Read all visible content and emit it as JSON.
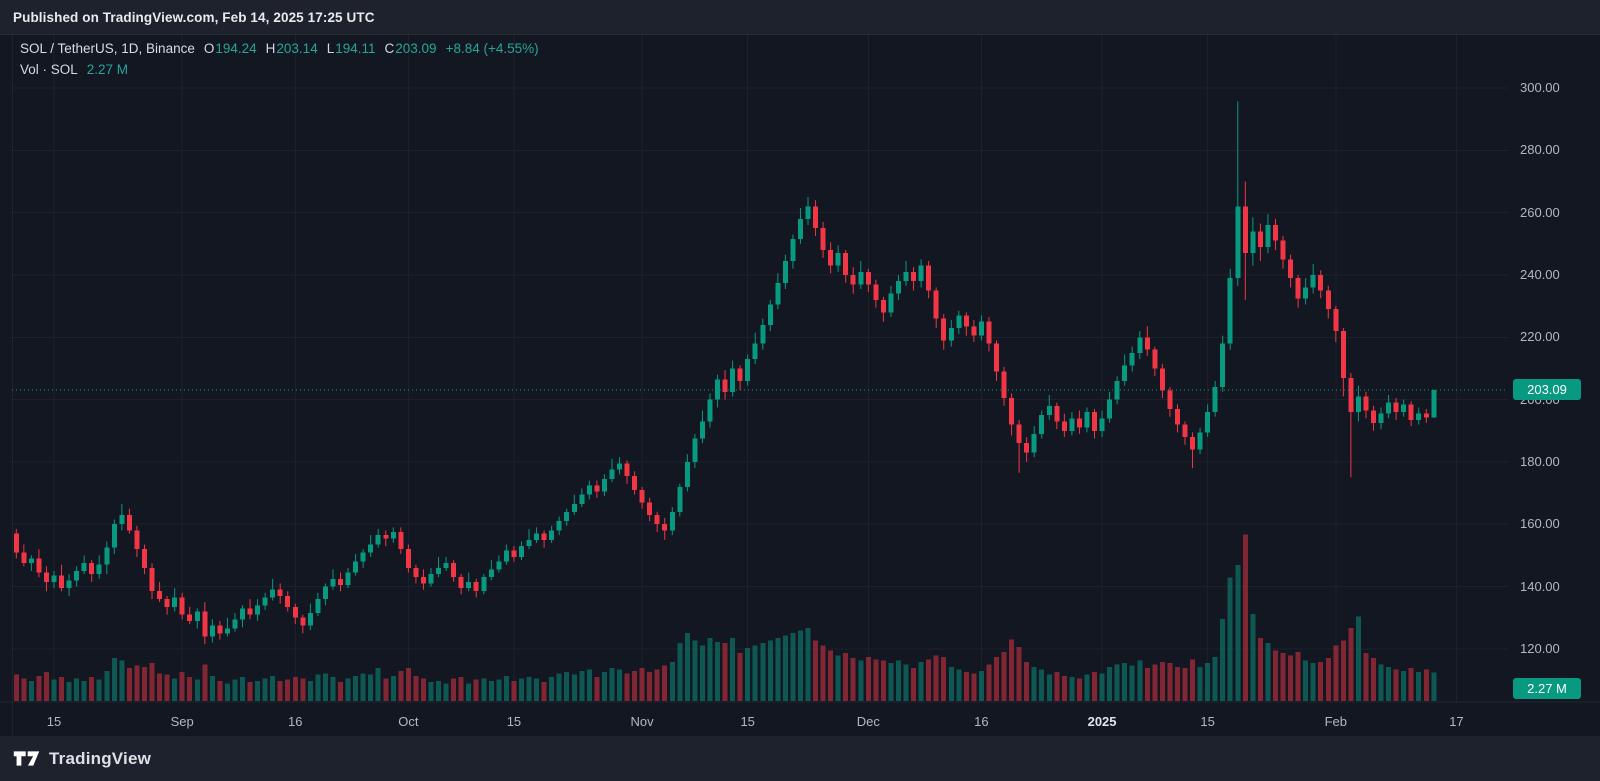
{
  "header": {
    "published_line": "Published on TradingView.com, Feb 14, 2025 17:25 UTC"
  },
  "legend": {
    "symbol_title": "SOL / TetherUS, 1D, Binance",
    "o_label": "O",
    "o_value": "194.24",
    "h_label": "H",
    "h_value": "203.14",
    "l_label": "L",
    "l_value": "194.11",
    "c_label": "C",
    "c_value": "203.09",
    "change": "+8.84 (+4.55%)",
    "volume_label": "Vol · SOL",
    "volume_value": "2.27 M"
  },
  "price_axis": {
    "labels": [
      "300.00",
      "280.00",
      "260.00",
      "240.00",
      "220.00",
      "200.00",
      "180.00",
      "160.00",
      "140.00",
      "120.00"
    ],
    "price_badge": "203.09",
    "volume_badge": "2.27 M"
  },
  "time_axis": {
    "ticks": [
      {
        "label": "15",
        "day": 5,
        "emph": false
      },
      {
        "label": "Sep",
        "day": 22,
        "emph": false
      },
      {
        "label": "16",
        "day": 37,
        "emph": false
      },
      {
        "label": "Oct",
        "day": 52,
        "emph": false
      },
      {
        "label": "15",
        "day": 66,
        "emph": false
      },
      {
        "label": "Nov",
        "day": 83,
        "emph": false
      },
      {
        "label": "15",
        "day": 97,
        "emph": false
      },
      {
        "label": "Dec",
        "day": 113,
        "emph": false
      },
      {
        "label": "16",
        "day": 128,
        "emph": false
      },
      {
        "label": "2025",
        "day": 144,
        "emph": true
      },
      {
        "label": "15",
        "day": 158,
        "emph": false
      },
      {
        "label": "Feb",
        "day": 175,
        "emph": false
      },
      {
        "label": "17",
        "day": 191,
        "emph": false
      }
    ]
  },
  "footer": {
    "brand": "TradingView"
  },
  "colors": {
    "up": "#089981",
    "down": "#F23645",
    "accent_teal": "#26a69a",
    "badge": "#089981",
    "bg_outer": "#1e222d",
    "bg_chart": "#131722",
    "grid": "#1c212c",
    "text_primary": "#d5d8dd",
    "text_axis": "#b2b7c0"
  },
  "chart_data": {
    "type": "candlestick_with_volume",
    "title": "SOL / TetherUS, 1D, Binance",
    "symbol": "SOL/USDT",
    "exchange": "Binance",
    "interval": "1D",
    "start_date": "2024-08-10",
    "end_date": "2025-02-14",
    "note": "candles are consecutive daily bars [open, high, low, close, volume_millions]; values estimated from gridlines except final bar which matches the legend OHLC",
    "current_price": 203.09,
    "current_volume_m": 2.27,
    "price_ticks": [
      300,
      280,
      260,
      240,
      220,
      200,
      180,
      160,
      140,
      120
    ],
    "price_axis_range": [
      103,
      317
    ],
    "volume_axis_max_m": 13.3,
    "legend_position": "top-left",
    "grid": true,
    "candles": [
      [
        157,
        158.5,
        149,
        151,
        2.1
      ],
      [
        151,
        153.5,
        146.5,
        147.5,
        1.8
      ],
      [
        147.5,
        150,
        145,
        149,
        1.6
      ],
      [
        149,
        152,
        143,
        144.5,
        2.0
      ],
      [
        144.5,
        146.5,
        138.5,
        141.5,
        2.3
      ],
      [
        141.5,
        145,
        139.5,
        143.5,
        1.7
      ],
      [
        143.5,
        147,
        138.5,
        139.5,
        1.9
      ],
      [
        139.5,
        144,
        137,
        142,
        1.5
      ],
      [
        142,
        146.5,
        140,
        145,
        1.8
      ],
      [
        145,
        150,
        144,
        147.5,
        1.6
      ],
      [
        147.5,
        148.5,
        141.5,
        144,
        1.9
      ],
      [
        144,
        150,
        142.5,
        147,
        1.7
      ],
      [
        147,
        154.5,
        144,
        152.5,
        2.4
      ],
      [
        152.5,
        161.5,
        150.5,
        160,
        3.4
      ],
      [
        160,
        166.5,
        158,
        163,
        3.2
      ],
      [
        163,
        165,
        157,
        158,
        2.6
      ],
      [
        158,
        159.5,
        149.5,
        152,
        2.8
      ],
      [
        152,
        153.5,
        144,
        146,
        2.7
      ],
      [
        146,
        147.5,
        136,
        138.5,
        3.0
      ],
      [
        138.5,
        141.5,
        135,
        136,
        2.2
      ],
      [
        136,
        137,
        131,
        133.5,
        2.1
      ],
      [
        133.5,
        139.5,
        132,
        136.5,
        1.8
      ],
      [
        136.5,
        138,
        129.5,
        131,
        2.3
      ],
      [
        131,
        133.5,
        128,
        129,
        1.9
      ],
      [
        129,
        133,
        126.5,
        132,
        1.7
      ],
      [
        132,
        135,
        121.5,
        124,
        2.9
      ],
      [
        124,
        129.5,
        122,
        127.5,
        2.0
      ],
      [
        127.5,
        129,
        123,
        125,
        1.6
      ],
      [
        125,
        130,
        124,
        126.5,
        1.4
      ],
      [
        126.5,
        131.5,
        125.5,
        129.5,
        1.7
      ],
      [
        129.5,
        134,
        127,
        133,
        1.9
      ],
      [
        133,
        136,
        129.5,
        131,
        1.5
      ],
      [
        131,
        136,
        129,
        134,
        1.6
      ],
      [
        134,
        138,
        132.5,
        136.5,
        1.8
      ],
      [
        136.5,
        142.5,
        135.5,
        139,
        2.0
      ],
      [
        139,
        141,
        134.5,
        137,
        1.6
      ],
      [
        137,
        138.5,
        132,
        133.5,
        1.7
      ],
      [
        133.5,
        134.5,
        128,
        130,
        1.9
      ],
      [
        130,
        131,
        125,
        127.5,
        1.8
      ],
      [
        127.5,
        134.5,
        126,
        131.5,
        1.6
      ],
      [
        131.5,
        138,
        130.5,
        136,
        2.1
      ],
      [
        136,
        141,
        134,
        140,
        2.2
      ],
      [
        140,
        145.5,
        139,
        142.5,
        1.9
      ],
      [
        142.5,
        144.5,
        138.5,
        140.5,
        1.5
      ],
      [
        140.5,
        146,
        139.5,
        144.5,
        1.8
      ],
      [
        144.5,
        150.5,
        143.5,
        148,
        2.0
      ],
      [
        148,
        152,
        146,
        151,
        2.2
      ],
      [
        151,
        156.5,
        149.5,
        153.5,
        2.1
      ],
      [
        153.5,
        158.5,
        152.5,
        156.5,
        2.6
      ],
      [
        156.5,
        158,
        153,
        155.5,
        1.8
      ],
      [
        155.5,
        159,
        154,
        157.5,
        2.0
      ],
      [
        157.5,
        159,
        150.5,
        152,
        2.4
      ],
      [
        152,
        153.5,
        144.5,
        146,
        2.6
      ],
      [
        146,
        147,
        141,
        143,
        2.0
      ],
      [
        143,
        145.5,
        139,
        141,
        1.8
      ],
      [
        141,
        146,
        140,
        144,
        1.5
      ],
      [
        144,
        149.5,
        143,
        146,
        1.6
      ],
      [
        146,
        149.5,
        145,
        147.5,
        1.4
      ],
      [
        147.5,
        148.5,
        141.5,
        143,
        1.8
      ],
      [
        143,
        144,
        137.5,
        139.5,
        1.9
      ],
      [
        139.5,
        144.5,
        138.5,
        141.5,
        1.4
      ],
      [
        141.5,
        142.5,
        136.5,
        138.5,
        1.7
      ],
      [
        138.5,
        144,
        137.5,
        143,
        1.8
      ],
      [
        143,
        148.5,
        142,
        145.5,
        1.6
      ],
      [
        145.5,
        150,
        144.5,
        148,
        1.7
      ],
      [
        148,
        153.5,
        147,
        151.5,
        2.0
      ],
      [
        151.5,
        153,
        148,
        149.5,
        1.6
      ],
      [
        149.5,
        154.5,
        148.5,
        153,
        1.8
      ],
      [
        153,
        158.5,
        152,
        155,
        1.9
      ],
      [
        155,
        159,
        154,
        157,
        1.8
      ],
      [
        157,
        158,
        152.5,
        155,
        1.5
      ],
      [
        155,
        159.5,
        154,
        158,
        1.9
      ],
      [
        158,
        162.5,
        156.5,
        161,
        2.2
      ],
      [
        161,
        165,
        159.5,
        164,
        2.3
      ],
      [
        164,
        169.5,
        163,
        166.5,
        2.1
      ],
      [
        166.5,
        171.5,
        165.5,
        169.5,
        2.4
      ],
      [
        169.5,
        174,
        168,
        172.5,
        2.5
      ],
      [
        172.5,
        174,
        168.5,
        170.5,
        1.9
      ],
      [
        170.5,
        176,
        169,
        174.5,
        2.3
      ],
      [
        174.5,
        181,
        173.5,
        177.5,
        2.6
      ],
      [
        177.5,
        181.5,
        176,
        179.5,
        2.5
      ],
      [
        179.5,
        180.5,
        173,
        175.5,
        2.2
      ],
      [
        175.5,
        177,
        169.5,
        171,
        2.4
      ],
      [
        171,
        172,
        165,
        167,
        2.6
      ],
      [
        167,
        168.5,
        161,
        163,
        2.3
      ],
      [
        163,
        164,
        157.5,
        160,
        2.5
      ],
      [
        160,
        162,
        155,
        158,
        2.8
      ],
      [
        158,
        165.5,
        156.5,
        164,
        3.1
      ],
      [
        164,
        173,
        162.5,
        172,
        4.6
      ],
      [
        172,
        182.5,
        170.5,
        180,
        5.4
      ],
      [
        180,
        189,
        178,
        187.5,
        4.8
      ],
      [
        187.5,
        196.5,
        186,
        193,
        4.4
      ],
      [
        193,
        202,
        191,
        200,
        5.0
      ],
      [
        200,
        208,
        197.5,
        206.5,
        4.7
      ],
      [
        206.5,
        209.5,
        200,
        202.5,
        4.6
      ],
      [
        202.5,
        212.5,
        201,
        210,
        5.0
      ],
      [
        210,
        211,
        203,
        206,
        3.8
      ],
      [
        206,
        214.5,
        204.5,
        213,
        4.2
      ],
      [
        213,
        221.5,
        211.5,
        218,
        4.4
      ],
      [
        218,
        226,
        216,
        224,
        4.6
      ],
      [
        224,
        232,
        222,
        230.5,
        4.8
      ],
      [
        230.5,
        240.5,
        229,
        237.5,
        5.0
      ],
      [
        237.5,
        246.5,
        235.5,
        244.5,
        5.2
      ],
      [
        244.5,
        253,
        242,
        251.5,
        5.4
      ],
      [
        251.5,
        261.5,
        250,
        258,
        5.6
      ],
      [
        258,
        265,
        256,
        262,
        5.8
      ],
      [
        262,
        264,
        252.5,
        255,
        4.8
      ],
      [
        255,
        257,
        245.5,
        248,
        4.4
      ],
      [
        248,
        250.5,
        240.5,
        243,
        4.0
      ],
      [
        243,
        249.5,
        241,
        247,
        3.6
      ],
      [
        247,
        248,
        237.5,
        240,
        3.8
      ],
      [
        240,
        242.5,
        234,
        237,
        3.4
      ],
      [
        237,
        244.5,
        235.5,
        241,
        3.2
      ],
      [
        241,
        242,
        234.5,
        237,
        3.5
      ],
      [
        237,
        238.5,
        229.5,
        232,
        3.3
      ],
      [
        232,
        233,
        225,
        228,
        3.2
      ],
      [
        228,
        236.5,
        226.5,
        234,
        3.0
      ],
      [
        234,
        240,
        232,
        238,
        3.2
      ],
      [
        238,
        244.5,
        236.5,
        241,
        2.9
      ],
      [
        241,
        242.5,
        235,
        238,
        2.6
      ],
      [
        238,
        245,
        236,
        243,
        3.1
      ],
      [
        243,
        244.5,
        232.5,
        235,
        3.3
      ],
      [
        235,
        236,
        223,
        226,
        3.6
      ],
      [
        226,
        227.5,
        216,
        219,
        3.5
      ],
      [
        219,
        225.5,
        217,
        223,
        2.7
      ],
      [
        223,
        228.5,
        221,
        227,
        2.5
      ],
      [
        227,
        228,
        220.5,
        223.5,
        2.3
      ],
      [
        223.5,
        225.5,
        218.5,
        220.5,
        2.2
      ],
      [
        220.5,
        227,
        219,
        225,
        2.4
      ],
      [
        225,
        226.5,
        215.5,
        218,
        2.9
      ],
      [
        218,
        219,
        206,
        209,
        3.5
      ],
      [
        209,
        210.5,
        198,
        200.5,
        3.9
      ],
      [
        200.5,
        202,
        188.5,
        192,
        4.9
      ],
      [
        192,
        193.5,
        176.5,
        186,
        4.3
      ],
      [
        186,
        188,
        180,
        183,
        3.1
      ],
      [
        183,
        191.5,
        181.5,
        189,
        2.7
      ],
      [
        189,
        196.5,
        187.5,
        195,
        2.5
      ],
      [
        195,
        201.5,
        193.5,
        198,
        2.1
      ],
      [
        198,
        199,
        190.5,
        193,
        2.3
      ],
      [
        193,
        195.5,
        188,
        190,
        2.0
      ],
      [
        190,
        196,
        188.5,
        194,
        1.9
      ],
      [
        194,
        196.5,
        189,
        191,
        1.8
      ],
      [
        191,
        197.5,
        189.5,
        196,
        2.1
      ],
      [
        196,
        197,
        187.5,
        190,
        2.3
      ],
      [
        190,
        196.5,
        188,
        194,
        2.2
      ],
      [
        194,
        202.5,
        192.5,
        200,
        2.7
      ],
      [
        200,
        207.5,
        198.5,
        206,
        2.9
      ],
      [
        206,
        214.5,
        204.5,
        211,
        3.0
      ],
      [
        211,
        217,
        209,
        215,
        2.8
      ],
      [
        215,
        222,
        213,
        220,
        3.2
      ],
      [
        220,
        223.5,
        214,
        216,
        2.6
      ],
      [
        216,
        217,
        207.5,
        210,
        2.9
      ],
      [
        210,
        211.5,
        200.5,
        203,
        3.1
      ],
      [
        203,
        204,
        194.5,
        197,
        3.0
      ],
      [
        197,
        198.5,
        189.5,
        192,
        2.7
      ],
      [
        192,
        193,
        185.5,
        188,
        2.6
      ],
      [
        188,
        189.5,
        178,
        184,
        3.3
      ],
      [
        184,
        191,
        182.5,
        189.5,
        2.7
      ],
      [
        189.5,
        198.5,
        188,
        196,
        3.0
      ],
      [
        196,
        206,
        194.5,
        204,
        3.5
      ],
      [
        204,
        220.5,
        202.5,
        218,
        6.5
      ],
      [
        218,
        242,
        216,
        239,
        9.8
      ],
      [
        239,
        295.7,
        236.5,
        262,
        10.8
      ],
      [
        262,
        270,
        232,
        247,
        13.2
      ],
      [
        247,
        258.5,
        243,
        254,
        6.9
      ],
      [
        254,
        256.5,
        244.5,
        249,
        5.0
      ],
      [
        249,
        259.5,
        247,
        256,
        4.6
      ],
      [
        256,
        258,
        248,
        251,
        4.0
      ],
      [
        251,
        252.5,
        242,
        245,
        3.8
      ],
      [
        245,
        246.5,
        236,
        239,
        3.6
      ],
      [
        239,
        240,
        229.5,
        232.5,
        3.9
      ],
      [
        232.5,
        239,
        230.5,
        236,
        3.2
      ],
      [
        236,
        243.5,
        234,
        240,
        3.0
      ],
      [
        240,
        241.5,
        232.5,
        235,
        3.1
      ],
      [
        235,
        236.5,
        226,
        229,
        3.4
      ],
      [
        229,
        230,
        218.5,
        222,
        4.4
      ],
      [
        222,
        223,
        201,
        207,
        4.8
      ],
      [
        207,
        208.5,
        175.1,
        196,
        5.8
      ],
      [
        196,
        204.5,
        193,
        201,
        6.7
      ],
      [
        201,
        202.5,
        194,
        196.5,
        3.8
      ],
      [
        196.5,
        198,
        190,
        192.5,
        3.4
      ],
      [
        192.5,
        197.5,
        190.5,
        195.5,
        2.9
      ],
      [
        195.5,
        201.5,
        194,
        199,
        2.7
      ],
      [
        199,
        200.5,
        193.5,
        196,
        2.5
      ],
      [
        196,
        200,
        194.5,
        198.5,
        2.4
      ],
      [
        198.5,
        199.5,
        191.5,
        193.5,
        2.6
      ],
      [
        193.5,
        197.5,
        192,
        195.5,
        2.3
      ],
      [
        195.5,
        197,
        192.5,
        194.24,
        2.5
      ],
      [
        194.24,
        203.14,
        194.11,
        203.09,
        2.27
      ]
    ]
  }
}
